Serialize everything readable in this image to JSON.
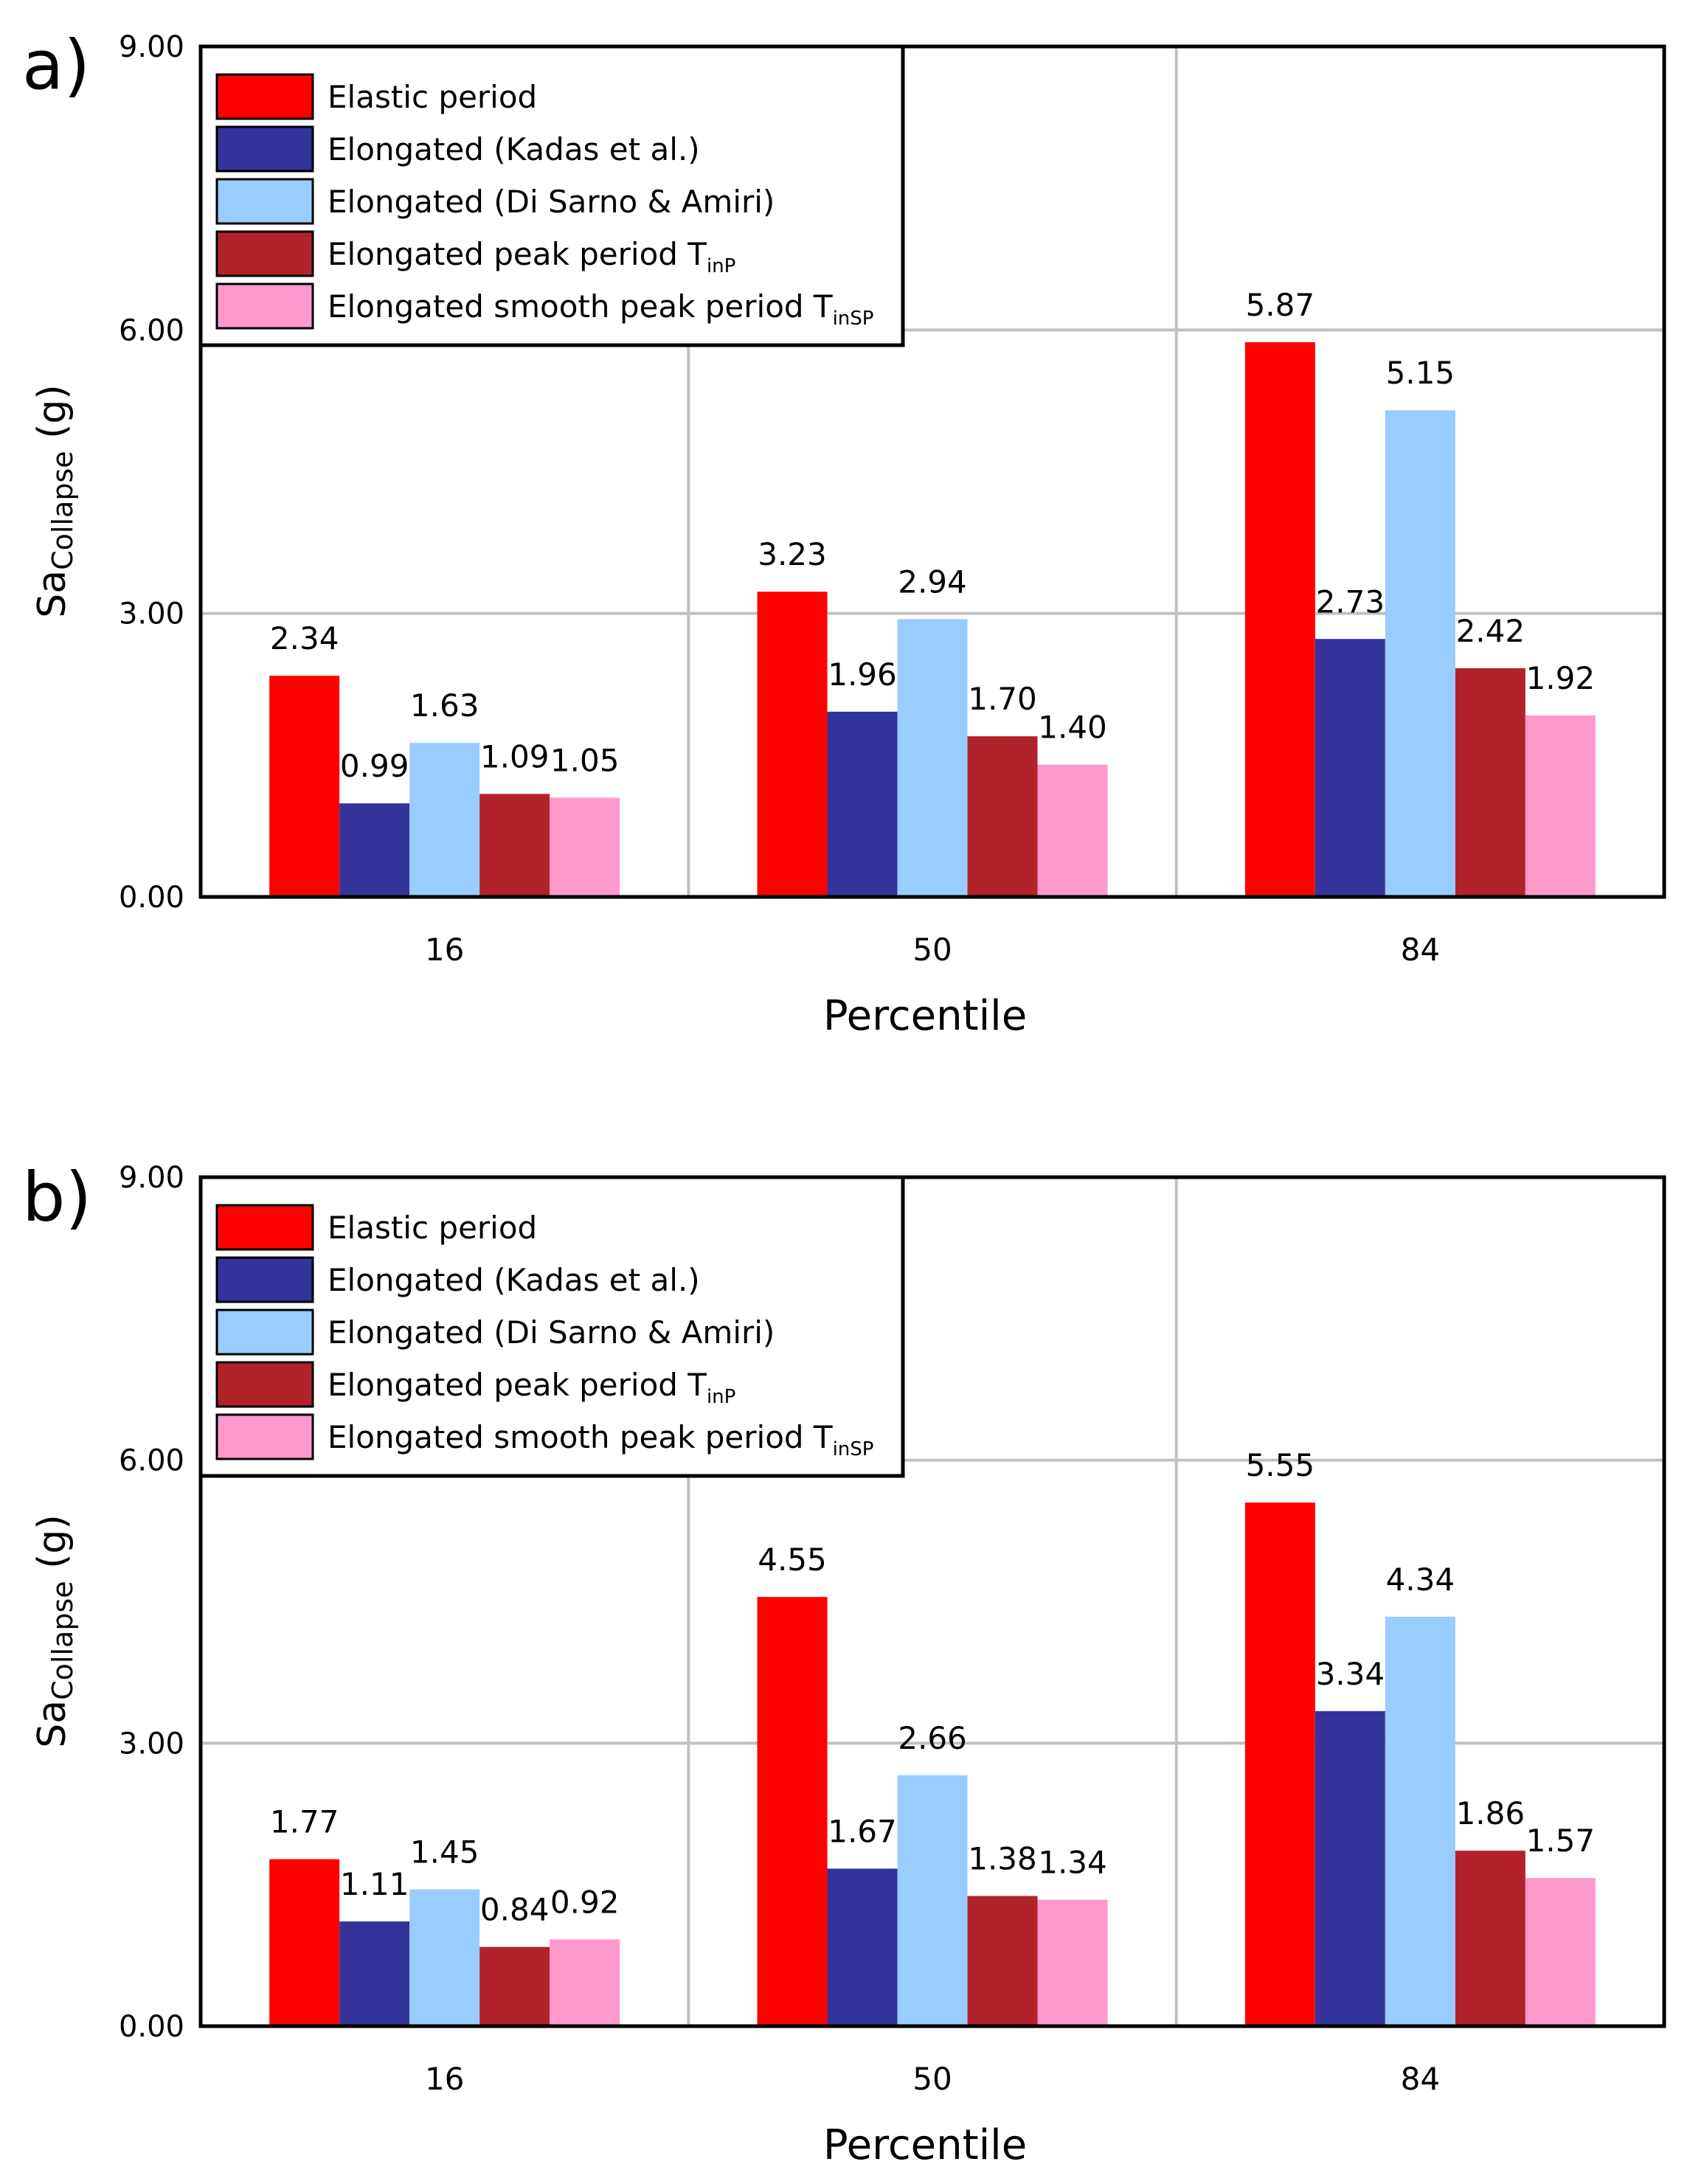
{
  "chart_data": [
    {
      "type": "bar",
      "panel_label": "a)",
      "xlabel": "Percentile",
      "ylabel_main": "Sa",
      "ylabel_sub": "Collapse",
      "ylabel_unit": "(g)",
      "ylim": [
        0,
        9
      ],
      "yticks": [
        "0.00",
        "3.00",
        "6.00",
        "9.00"
      ],
      "grid": true,
      "legend_position": "top-left",
      "categories": [
        "16",
        "50",
        "84"
      ],
      "series": [
        {
          "name": "Elastic period",
          "sub": "",
          "color": "#ff0000",
          "values": [
            2.34,
            3.23,
            5.87
          ],
          "labels": [
            "2.34",
            "3.23",
            "5.87"
          ]
        },
        {
          "name": "Elongated (Kadas et al.)",
          "sub": "",
          "color": "#333399",
          "values": [
            0.99,
            1.96,
            2.73
          ],
          "labels": [
            "0.99",
            "1.96",
            "2.73"
          ]
        },
        {
          "name": "Elongated (Di Sarno & Amiri)",
          "sub": "",
          "color": "#99ccff",
          "values": [
            1.63,
            2.94,
            5.15
          ],
          "labels": [
            "1.63",
            "2.94",
            "5.15"
          ]
        },
        {
          "name": "Elongated peak period T",
          "sub": "inP",
          "color": "#b2222a",
          "values": [
            1.09,
            1.7,
            2.42
          ],
          "labels": [
            "1.09",
            "1.70",
            "2.42"
          ]
        },
        {
          "name": "Elongated smooth peak period T",
          "sub": "inSP",
          "color": "#ff99cc",
          "values": [
            1.05,
            1.4,
            1.92
          ],
          "labels": [
            "1.05",
            "1.40",
            "1.92"
          ]
        }
      ]
    },
    {
      "type": "bar",
      "panel_label": "b)",
      "xlabel": "Percentile",
      "ylabel_main": "Sa",
      "ylabel_sub": "Collapse",
      "ylabel_unit": "(g)",
      "ylim": [
        0,
        9
      ],
      "yticks": [
        "0.00",
        "3.00",
        "6.00",
        "9.00"
      ],
      "grid": true,
      "legend_position": "top-left",
      "categories": [
        "16",
        "50",
        "84"
      ],
      "series": [
        {
          "name": "Elastic period",
          "sub": "",
          "color": "#ff0000",
          "values": [
            1.77,
            4.55,
            5.55
          ],
          "labels": [
            "1.77",
            "4.55",
            "5.55"
          ]
        },
        {
          "name": "Elongated (Kadas et al.)",
          "sub": "",
          "color": "#333399",
          "values": [
            1.11,
            1.67,
            3.34
          ],
          "labels": [
            "1.11",
            "1.67",
            "3.34"
          ]
        },
        {
          "name": "Elongated (Di Sarno & Amiri)",
          "sub": "",
          "color": "#99ccff",
          "values": [
            1.45,
            2.66,
            4.34
          ],
          "labels": [
            "1.45",
            "2.66",
            "4.34"
          ]
        },
        {
          "name": "Elongated peak period T",
          "sub": "inP",
          "color": "#b2222a",
          "values": [
            0.84,
            1.38,
            1.86
          ],
          "labels": [
            "0.84",
            "1.38",
            "1.86"
          ]
        },
        {
          "name": "Elongated smooth peak period T",
          "sub": "inSP",
          "color": "#ff99cc",
          "values": [
            0.92,
            1.34,
            1.57
          ],
          "labels": [
            "0.92",
            "1.34",
            "1.57"
          ]
        }
      ]
    }
  ]
}
